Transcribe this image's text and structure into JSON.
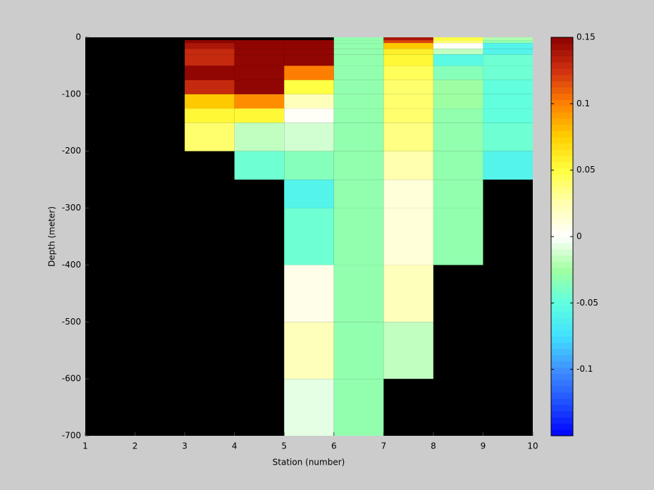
{
  "chart_data": {
    "type": "heatmap",
    "xlabel": "Station (number)",
    "ylabel": "Depth (meter)",
    "x_edges": [
      1,
      2,
      3,
      4,
      5,
      6,
      7,
      8,
      9,
      10
    ],
    "y_edges": [
      0,
      -5,
      -10,
      -20,
      -30,
      -50,
      -75,
      -100,
      -125,
      -150,
      -200,
      -250,
      -300,
      -400,
      -500,
      -600,
      -700
    ],
    "z": [
      [
        null,
        null,
        null,
        null,
        null,
        -0.03,
        0.14,
        0.05,
        -0.02
      ],
      [
        null,
        null,
        0.15,
        0.15,
        0.15,
        -0.03,
        0.12,
        0.04,
        -0.03
      ],
      [
        null,
        null,
        0.14,
        0.15,
        0.15,
        -0.03,
        0.075,
        0,
        -0.06
      ],
      [
        null,
        null,
        0.13,
        0.15,
        0.15,
        -0.03,
        0.06,
        -0.015,
        -0.06
      ],
      [
        null,
        null,
        0.13,
        0.15,
        0.15,
        -0.03,
        0.055,
        -0.055,
        -0.045
      ],
      [
        null,
        null,
        0.15,
        0.15,
        0.1,
        -0.03,
        0.045,
        -0.035,
        -0.045
      ],
      [
        null,
        null,
        0.13,
        0.15,
        0.05,
        -0.03,
        0.04,
        -0.025,
        -0.05
      ],
      [
        null,
        null,
        0.075,
        0.095,
        0.02,
        -0.03,
        0.04,
        -0.025,
        -0.05
      ],
      [
        null,
        null,
        0.055,
        0.055,
        0,
        -0.03,
        0.04,
        -0.03,
        -0.05
      ],
      [
        null,
        null,
        0.04,
        -0.015,
        -0.012,
        -0.03,
        0.035,
        -0.03,
        -0.045
      ],
      [
        null,
        null,
        null,
        -0.045,
        -0.035,
        -0.03,
        0.025,
        -0.03,
        -0.06
      ],
      [
        null,
        null,
        null,
        null,
        -0.06,
        -0.03,
        0.012,
        -0.03,
        null
      ],
      [
        null,
        null,
        null,
        null,
        -0.045,
        -0.03,
        0.012,
        -0.03,
        null
      ],
      [
        null,
        null,
        null,
        null,
        0.005,
        -0.03,
        0.022,
        null,
        null
      ],
      [
        null,
        null,
        null,
        null,
        0.02,
        -0.03,
        -0.015,
        null,
        null
      ],
      [
        null,
        null,
        null,
        null,
        -0.008,
        -0.03,
        null,
        null,
        null
      ]
    ],
    "xlim": [
      1,
      10
    ],
    "xticks": [
      1,
      2,
      3,
      4,
      5,
      6,
      7,
      8,
      9,
      10
    ],
    "ylim": [
      -700,
      0
    ],
    "yticks": [
      0,
      -100,
      -200,
      -300,
      -400,
      -500,
      -600,
      -700
    ],
    "clim": [
      -0.15,
      0.15
    ],
    "cticks": [
      0.15,
      0.1,
      0.05,
      0,
      -0.05,
      -0.1
    ],
    "colormap": [
      "#0000ff",
      "#2050ff",
      "#4090ff",
      "#40e0ff",
      "#60ffe0",
      "#a0ffa0",
      "#ffffff",
      "#ffffb0",
      "#ffff40",
      "#ffd000",
      "#ff8000",
      "#d03010",
      "#8b0000"
    ],
    "missing_color": "#000000"
  }
}
